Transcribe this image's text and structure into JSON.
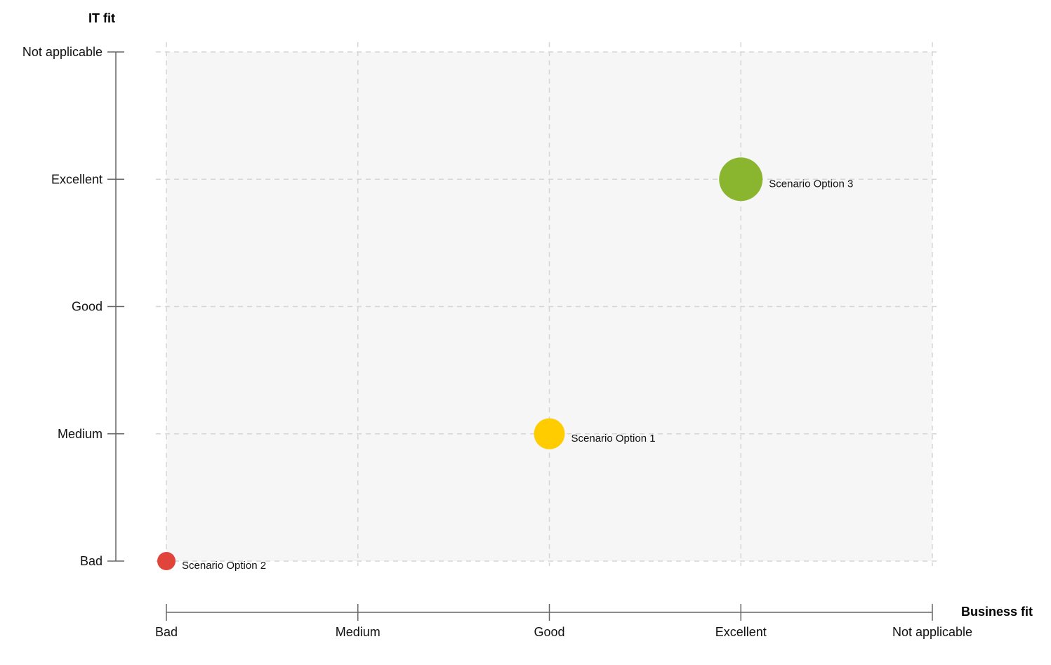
{
  "chart_data": {
    "type": "scatter",
    "xlabel": "Business fit",
    "ylabel": "IT fit",
    "x_categories": [
      "Bad",
      "Medium",
      "Good",
      "Excellent",
      "Not applicable"
    ],
    "y_categories": [
      "Bad",
      "Medium",
      "Good",
      "Excellent",
      "Not applicable"
    ],
    "grid": true,
    "points": [
      {
        "label": "Scenario Option 1",
        "x": "Good",
        "y": "Medium",
        "size": 2,
        "color": "#FFCC00"
      },
      {
        "label": "Scenario Option 2",
        "x": "Bad",
        "y": "Bad",
        "size": 1,
        "color": "#E0443A"
      },
      {
        "label": "Scenario Option 3",
        "x": "Excellent",
        "y": "Excellent",
        "size": 3,
        "color": "#8AB52E"
      }
    ],
    "colors": {
      "plot_background": "#F6F6F6",
      "grid": "#D6D6D6",
      "axis": "#666666"
    }
  }
}
